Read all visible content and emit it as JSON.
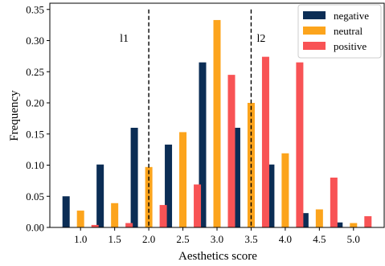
{
  "chart_data": {
    "type": "bar",
    "xlabel": "Aesthetics score",
    "ylabel": "Frequency",
    "categories": [
      "1.0",
      "1.5",
      "2.0",
      "2.5",
      "3.0",
      "3.5",
      "4.0",
      "4.5",
      "5.0"
    ],
    "x": [
      1.0,
      1.5,
      2.0,
      2.5,
      3.0,
      3.5,
      4.0,
      4.5,
      5.0
    ],
    "series": [
      {
        "name": "negative",
        "color": "#0b2d55",
        "values": [
          0.05,
          0.101,
          0.16,
          0.133,
          0.265,
          0.16,
          0.101,
          0.023,
          0.008
        ]
      },
      {
        "name": "neutral",
        "color": "#fca41c",
        "values": [
          0.027,
          0.039,
          0.097,
          0.153,
          0.333,
          0.2,
          0.119,
          0.029,
          0.007
        ]
      },
      {
        "name": "positive",
        "color": "#f85355",
        "values": [
          0.004,
          0.007,
          0.036,
          0.069,
          0.245,
          0.274,
          0.265,
          0.08,
          0.018
        ]
      }
    ],
    "ylim": [
      0,
      0.36
    ],
    "xlim": [
      0.55,
      5.45
    ],
    "yticks": [
      0.0,
      0.05,
      0.1,
      0.15,
      0.2,
      0.25,
      0.3,
      0.35
    ],
    "ytick_labels": [
      "0.00",
      "0.05",
      "0.10",
      "0.15",
      "0.20",
      "0.25",
      "0.30",
      "0.35"
    ],
    "vlines": [
      {
        "x": 2.0,
        "label": "l1",
        "style": "dashed"
      },
      {
        "x": 3.5,
        "label": "l2",
        "style": "dashed"
      }
    ],
    "legend_position": "top-right",
    "grid": false
  }
}
